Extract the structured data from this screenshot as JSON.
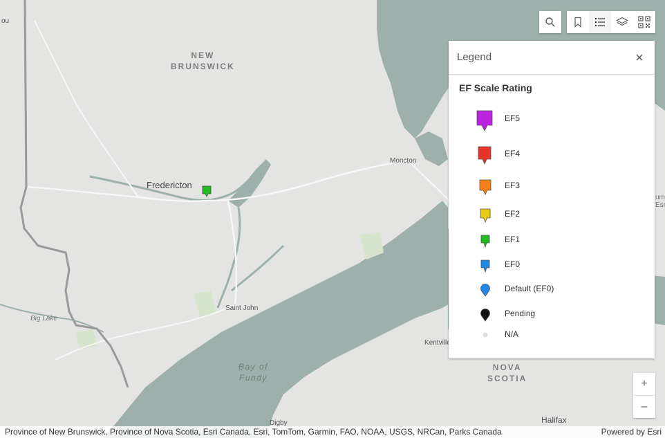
{
  "map": {
    "labels": {
      "new_brunswick": "NEW\nBRUNSWICK",
      "fredericton": "Fredericton",
      "moncton": "Moncton",
      "saint_john": "Saint John",
      "big_lake": "Big Lake",
      "bay_of_fundy": "Bay of\nFundy",
      "nova_scotia": "NOVA\nSCOTIA",
      "kentville": "Kentville",
      "halifax": "Halifax",
      "digby": "Digby",
      "edge_left": "ou",
      "edge_right": "um\nEsr"
    },
    "colors": {
      "land": "#e4e4e2",
      "water": "#9eb0ab",
      "park": "#d7e4cc",
      "road": "#f8f8f8",
      "border": "#9a9a9a"
    },
    "markers": [
      {
        "rating": "EF1",
        "color": "#22bb22",
        "near": "Fredericton"
      }
    ]
  },
  "toolbar": {
    "search_icon": "search-icon",
    "tools": [
      "bookmark-icon",
      "legend-list-icon",
      "layers-icon",
      "qr-code-icon"
    ],
    "active_tool": "legend-list-icon"
  },
  "legend": {
    "title": "Legend",
    "layer_title": "EF Scale Rating",
    "items": [
      {
        "label": "EF5",
        "color": "#bb22dd",
        "symbol": "square-pin"
      },
      {
        "label": "EF4",
        "color": "#e8332a",
        "symbol": "square-pin"
      },
      {
        "label": "EF3",
        "color": "#f57f17",
        "symbol": "square-pin"
      },
      {
        "label": "EF2",
        "color": "#e8cc12",
        "symbol": "square-pin"
      },
      {
        "label": "EF1",
        "color": "#22bb22",
        "symbol": "square-pin"
      },
      {
        "label": "EF0",
        "color": "#1e88e5",
        "symbol": "square-pin"
      },
      {
        "label": "Default (EF0)",
        "color": "#1e88e5",
        "symbol": "round-pin"
      },
      {
        "label": "Pending",
        "color": "#111111",
        "symbol": "round-pin"
      },
      {
        "label": "N/A",
        "color": "#dddddd",
        "symbol": "dot"
      }
    ]
  },
  "zoom": {
    "in_label": "+",
    "out_label": "–"
  },
  "attribution": {
    "text": "Province of New Brunswick, Province of Nova Scotia, Esri Canada, Esri, TomTom, Garmin, FAO, NOAA, USGS, NRCan, Parks Canada",
    "powered_by": "Powered by Esri"
  }
}
